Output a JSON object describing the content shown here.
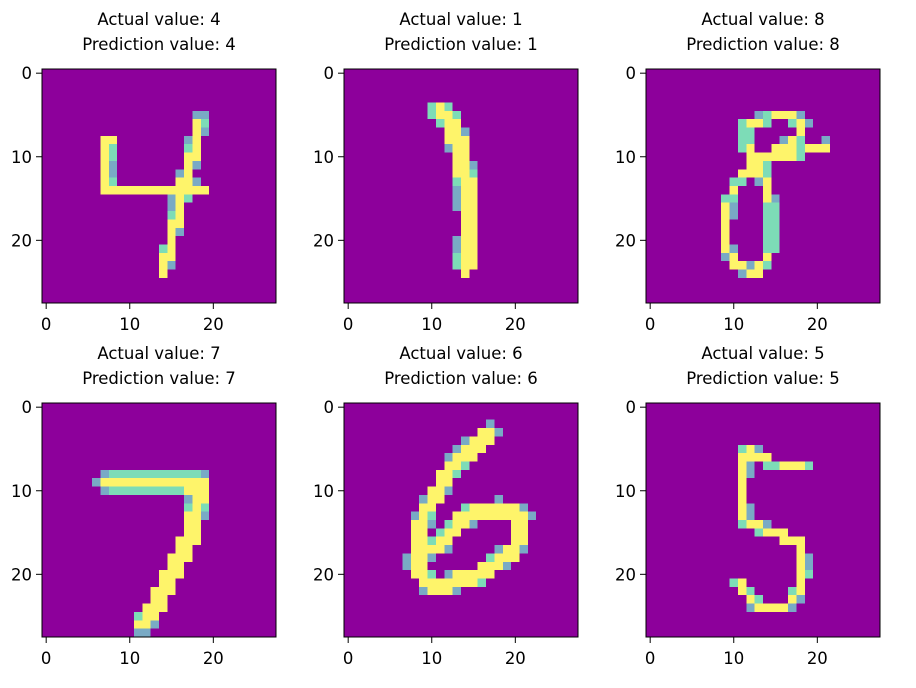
{
  "colors": {
    "background": "#440154",
    "mid_low": "#31688e",
    "mid_high": "#35b779",
    "foreground": "#fde725"
  },
  "chart_data": [
    {
      "type": "heatmap",
      "title_line1": "Actual value: 4",
      "title_line2": "Prediction value: 4",
      "image_size": [
        28,
        28
      ],
      "xticks": [
        0,
        10,
        20
      ],
      "yticks": [
        0,
        10,
        20
      ],
      "strokes": [
        [
          [
            7.5,
            8
          ],
          [
            7,
            14
          ],
          [
            19,
            14
          ]
        ],
        [
          [
            18.5,
            5.5
          ],
          [
            14,
            24
          ]
        ]
      ],
      "stroke_width": 1.9
    },
    {
      "type": "heatmap",
      "title_line1": "Actual value: 1",
      "title_line2": "Prediction value: 1",
      "image_size": [
        28,
        28
      ],
      "xticks": [
        0,
        10,
        20
      ],
      "yticks": [
        0,
        10,
        20
      ],
      "strokes": [
        [
          [
            11,
            4.5
          ],
          [
            12.5,
            6
          ],
          [
            14,
            12
          ],
          [
            14.5,
            18
          ],
          [
            14,
            23
          ]
        ]
      ],
      "stroke_width": 2.8
    },
    {
      "type": "heatmap",
      "title_line1": "Actual value: 8",
      "title_line2": "Prediction value: 8",
      "image_size": [
        28,
        28
      ],
      "xticks": [
        0,
        10,
        20
      ],
      "yticks": [
        0,
        10,
        20
      ],
      "strokes": [
        [
          [
            11.5,
            6
          ],
          [
            16,
            5
          ],
          [
            18.5,
            6
          ],
          [
            17.5,
            8
          ],
          [
            14.5,
            10
          ],
          [
            11,
            12
          ],
          [
            9.5,
            15
          ],
          [
            9,
            20
          ],
          [
            10,
            23
          ],
          [
            13,
            24
          ],
          [
            14.5,
            21
          ],
          [
            14.5,
            16
          ],
          [
            13.5,
            12
          ],
          [
            11.5,
            9
          ],
          [
            11.5,
            6
          ]
        ],
        [
          [
            14.5,
            10
          ],
          [
            18,
            9.5
          ],
          [
            21.5,
            8.5
          ]
        ]
      ],
      "stroke_width": 1.6
    },
    {
      "type": "heatmap",
      "title_line1": "Actual value: 7",
      "title_line2": "Prediction value: 7",
      "image_size": [
        28,
        28
      ],
      "xticks": [
        0,
        10,
        20
      ],
      "yticks": [
        0,
        10,
        20
      ],
      "strokes": [
        [
          [
            7,
            9
          ],
          [
            18.5,
            9
          ],
          [
            17.5,
            15
          ],
          [
            15,
            20
          ],
          [
            13,
            24
          ],
          [
            11.5,
            26
          ]
        ]
      ],
      "stroke_width": 2.6
    },
    {
      "type": "heatmap",
      "title_line1": "Actual value: 6",
      "title_line2": "Prediction value: 6",
      "image_size": [
        28,
        28
      ],
      "xticks": [
        0,
        10,
        20
      ],
      "yticks": [
        0,
        10,
        20
      ],
      "strokes": [
        [
          [
            17,
            3
          ],
          [
            12.5,
            7
          ],
          [
            9,
            13
          ],
          [
            8,
            19
          ],
          [
            10,
            21.5
          ],
          [
            15,
            20.5
          ],
          [
            20,
            17
          ],
          [
            21,
            13
          ],
          [
            18.5,
            12
          ],
          [
            14,
            13
          ],
          [
            10.5,
            17
          ]
        ]
      ],
      "stroke_width": 2.4
    },
    {
      "type": "heatmap",
      "title_line1": "Actual value: 5",
      "title_line2": "Prediction value: 5",
      "image_size": [
        28,
        28
      ],
      "xticks": [
        0,
        10,
        20
      ],
      "yticks": [
        0,
        10,
        20
      ],
      "strokes": [
        [
          [
            18.5,
            7
          ],
          [
            14,
            6.5
          ],
          [
            12.5,
            5.5
          ],
          [
            11.5,
            5
          ],
          [
            11,
            10
          ],
          [
            11.5,
            14
          ],
          [
            15,
            15
          ],
          [
            18,
            16.5
          ],
          [
            18.5,
            20
          ],
          [
            17,
            23.5
          ],
          [
            13,
            24
          ],
          [
            10.5,
            21
          ]
        ]
      ],
      "stroke_width": 1.7
    }
  ]
}
